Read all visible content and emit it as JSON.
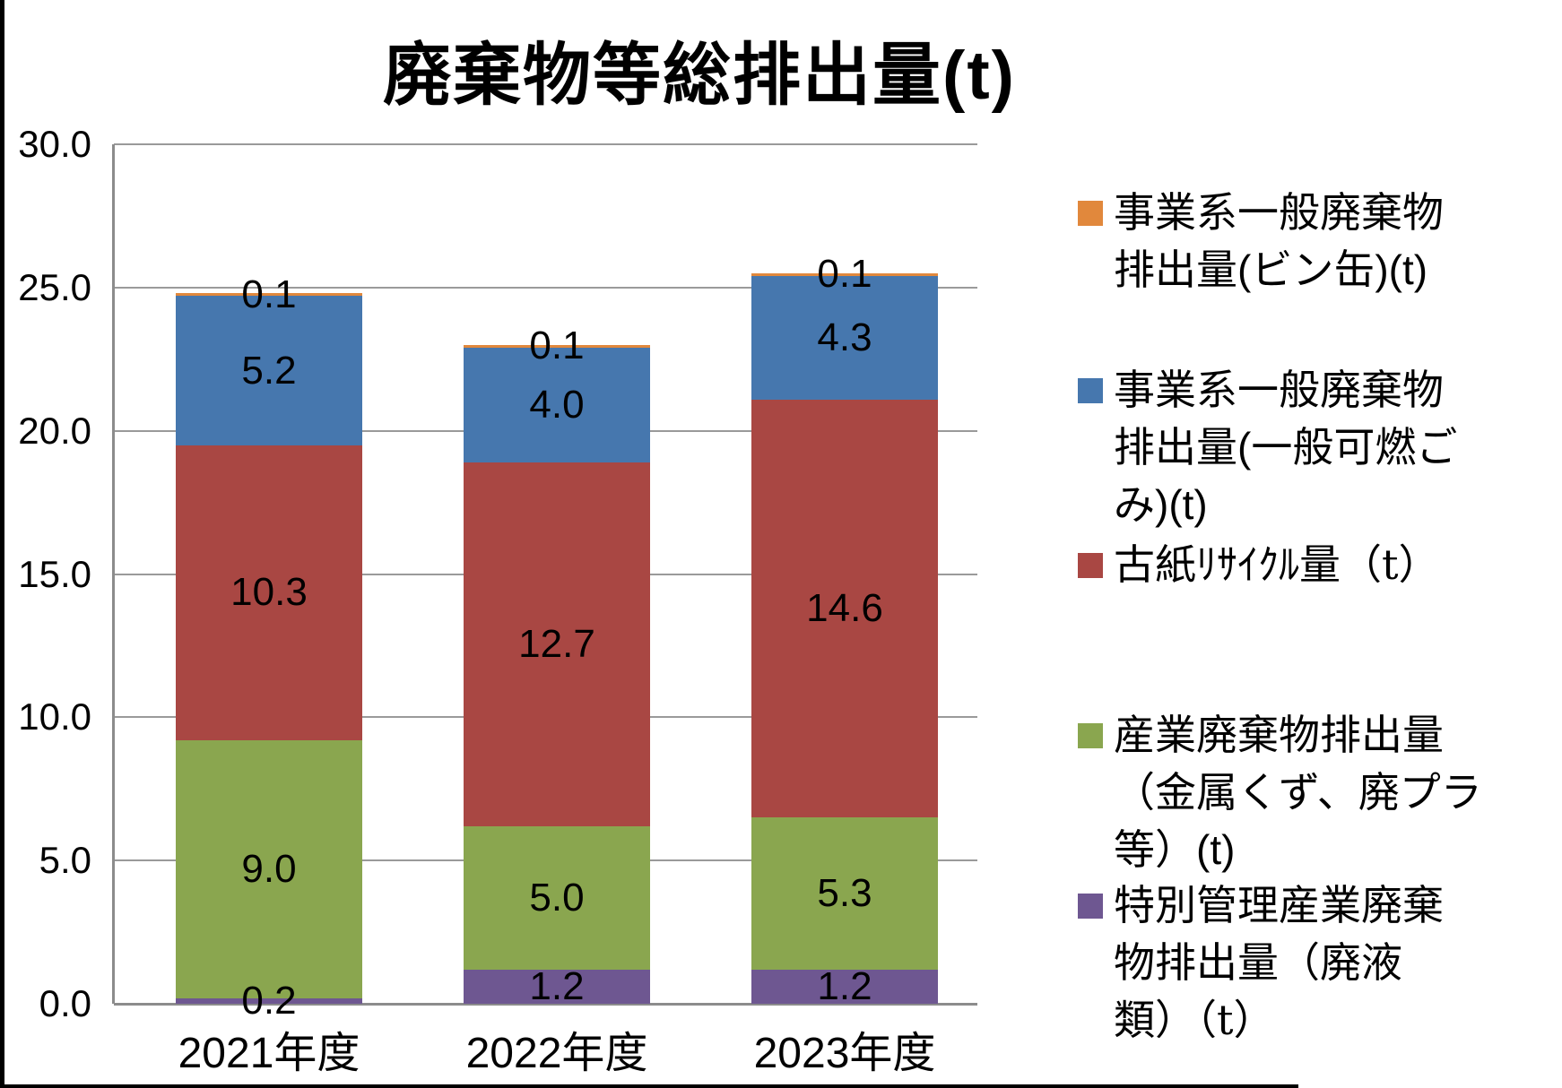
{
  "title": "廃棄物等総排出量(t)",
  "chart_data": {
    "type": "bar",
    "stacked": true,
    "title": "廃棄物等総排出量(t)",
    "categories": [
      "2021年度",
      "2022年度",
      "2023年度"
    ],
    "series": [
      {
        "name": "特別管理産業廃棄物排出量（廃液類）（t）",
        "color": "#6E5791",
        "values": [
          0.2,
          1.2,
          1.2
        ]
      },
      {
        "name": "産業廃棄物排出量（金属くず、廃プラ等）(t)",
        "color": "#8AA64F",
        "values": [
          9.0,
          5.0,
          5.3
        ]
      },
      {
        "name": "古紙ﾘｻｲｸﾙ量（t）",
        "color": "#A94743",
        "values": [
          10.3,
          12.7,
          14.6
        ]
      },
      {
        "name": "事業系一般廃棄物排出量(一般可燃ごみ)(t)",
        "color": "#4677AE",
        "values": [
          5.2,
          4.0,
          4.3
        ]
      },
      {
        "name": "事業系一般廃棄物排出量(ビン缶)(t)",
        "color": "#E1883C",
        "values": [
          0.1,
          0.1,
          0.1
        ]
      }
    ],
    "totals": [
      24.8,
      23.0,
      25.5
    ],
    "ylim": [
      0,
      30
    ],
    "ytick_step": 5,
    "yticks": [
      0,
      5,
      10,
      15,
      20,
      25,
      30
    ],
    "ytick_labels": [
      "0.0",
      "5.0",
      "10.0",
      "15.0",
      "20.0",
      "25.0",
      "30.0"
    ],
    "grid": true,
    "data_labels": true,
    "legend_position": "right"
  },
  "legend": {
    "items": [
      {
        "label": "事業系一般廃棄物排出量(ビン缶)(t)",
        "color": "#E1883C",
        "style": "gothic",
        "lines": [
          "事業系一般廃棄物",
          "排出量(ビン缶)(t)"
        ]
      },
      {
        "label": "事業系一般廃棄物排出量(一般可燃ごみ)(t)",
        "color": "#4677AE",
        "style": "gothic",
        "lines": [
          "事業系一般廃棄物",
          "排出量(一般可燃ご",
          "み)(t)"
        ]
      },
      {
        "label": "古紙ﾘｻｲｸﾙ量（t）",
        "color": "#A94743",
        "style": "mincho",
        "lines": [
          "古紙ﾘｻｲｸﾙ量（t）"
        ]
      },
      {
        "label": "産業廃棄物排出量（金属くず、廃プラ等）(t)",
        "color": "#8AA64F",
        "style": "gothic",
        "lines": [
          "産業廃棄物排出量",
          "（金属くず、廃プラ",
          "等）(t)"
        ]
      },
      {
        "label": "特別管理産業廃棄物排出量（廃液類）（t）",
        "color": "#6E5791",
        "style": "mincho",
        "lines": [
          "特別管理産業廃棄",
          "物排出量（廃液",
          "類）（t）"
        ]
      }
    ]
  }
}
